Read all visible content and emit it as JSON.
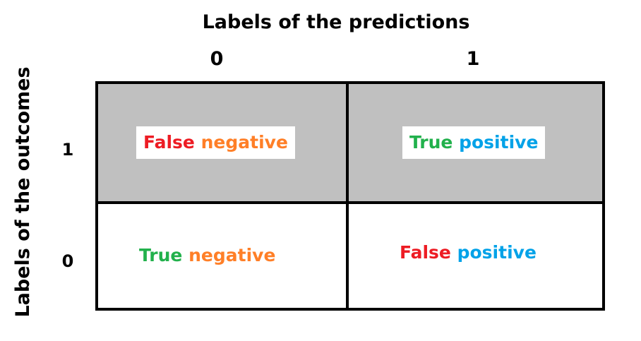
{
  "title": "Labels of the predictions",
  "y_axis_title": "Labels of the outcomes",
  "columns": [
    "0",
    "1"
  ],
  "rows": [
    "1",
    "0"
  ],
  "colors": {
    "true": "#22b14c",
    "false": "#ed1c24",
    "positive": "#00a2e8",
    "negative": "#ff7f27",
    "shaded_row": "#c0c0c0"
  },
  "cells": {
    "false_negative": {
      "word1": "False",
      "word2": "negative"
    },
    "true_positive": {
      "word1": "True",
      "word2": "positive"
    },
    "true_negative": {
      "word1": "True",
      "word2": "negative"
    },
    "false_positive": {
      "word1": "False",
      "word2": "positive"
    }
  }
}
